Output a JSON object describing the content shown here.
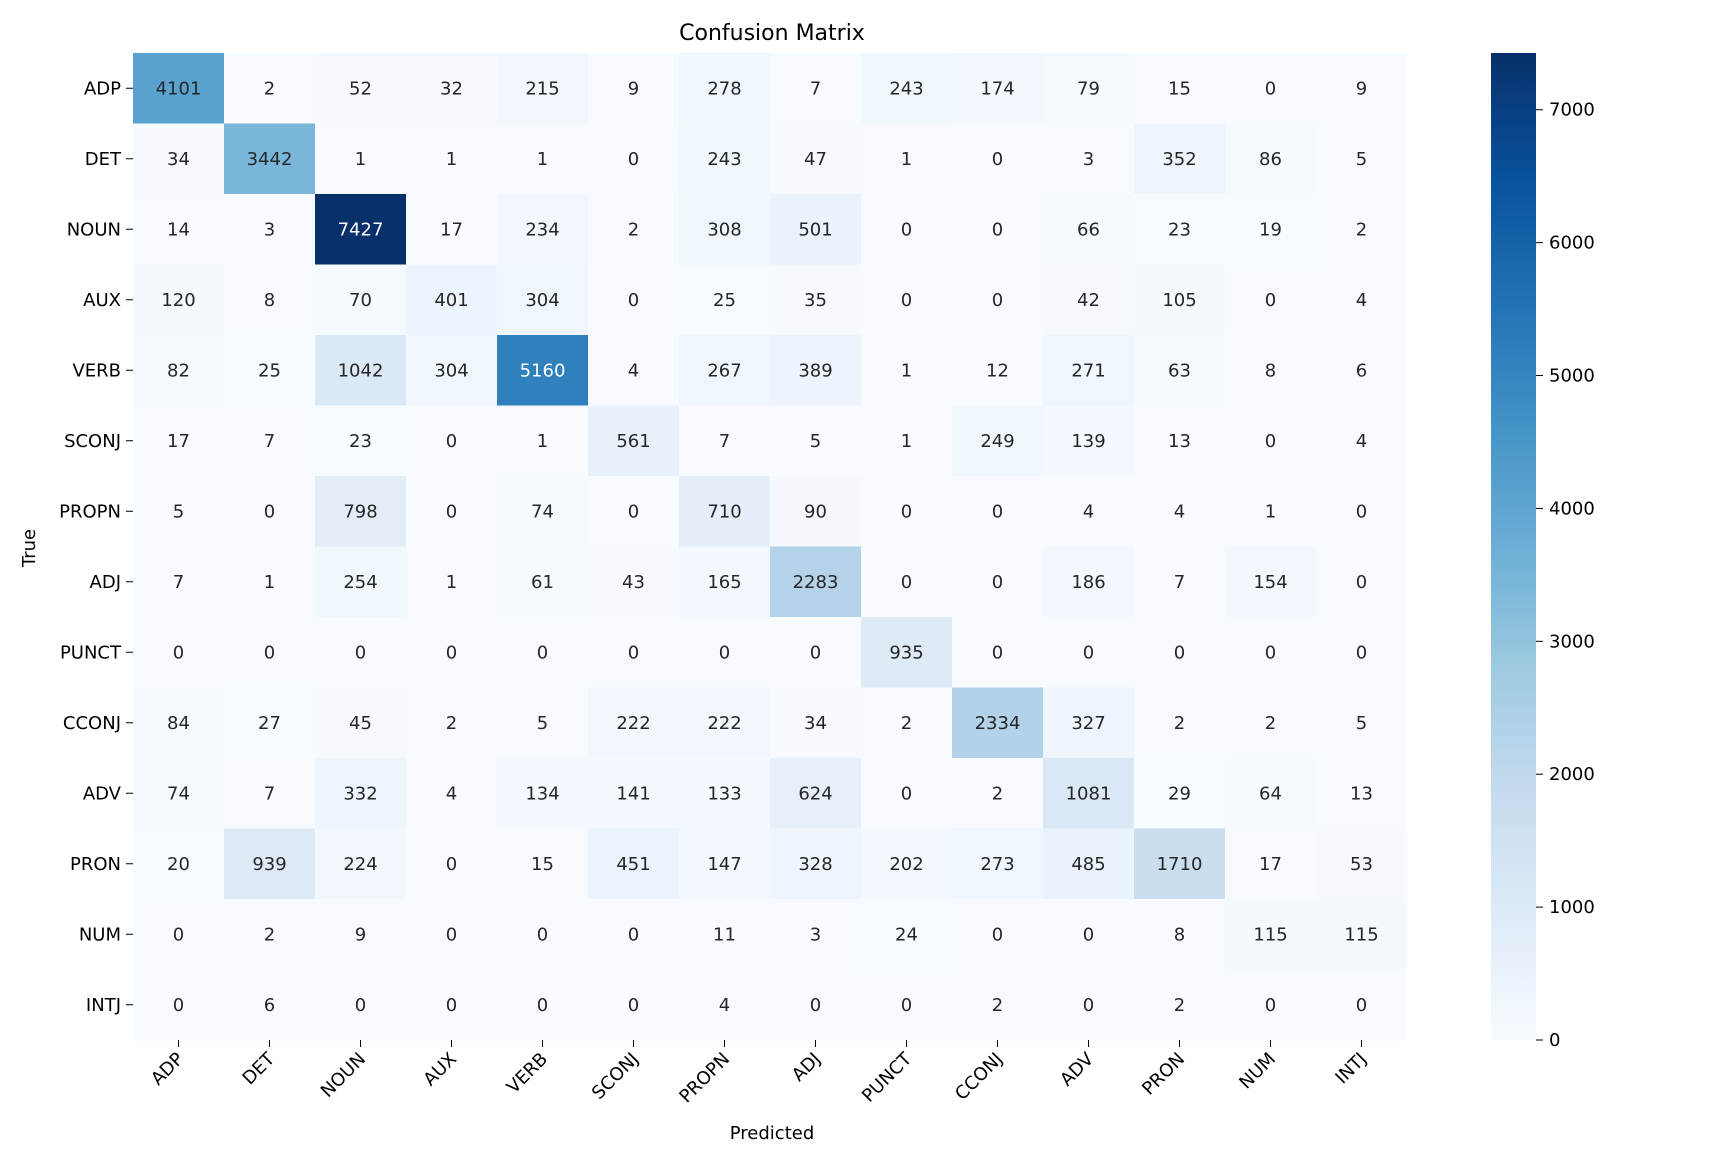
{
  "chart_data": {
    "type": "heatmap",
    "title": "Confusion Matrix",
    "xlabel": "Predicted",
    "ylabel": "True",
    "x_categories": [
      "ADP",
      "DET",
      "NOUN",
      "AUX",
      "VERB",
      "SCONJ",
      "PROPN",
      "ADJ",
      "PUNCT",
      "CCONJ",
      "ADV",
      "PRON",
      "NUM",
      "INTJ"
    ],
    "y_categories": [
      "ADP",
      "DET",
      "NOUN",
      "AUX",
      "VERB",
      "SCONJ",
      "PROPN",
      "ADJ",
      "PUNCT",
      "CCONJ",
      "ADV",
      "PRON",
      "NUM",
      "INTJ"
    ],
    "values": [
      [
        4101,
        2,
        52,
        32,
        215,
        9,
        278,
        7,
        243,
        174,
        79,
        15,
        0,
        9
      ],
      [
        34,
        3442,
        1,
        1,
        1,
        0,
        243,
        47,
        1,
        0,
        3,
        352,
        86,
        5
      ],
      [
        14,
        3,
        7427,
        17,
        234,
        2,
        308,
        501,
        0,
        0,
        66,
        23,
        19,
        2
      ],
      [
        120,
        8,
        70,
        401,
        304,
        0,
        25,
        35,
        0,
        0,
        42,
        105,
        0,
        4
      ],
      [
        82,
        25,
        1042,
        304,
        5160,
        4,
        267,
        389,
        1,
        12,
        271,
        63,
        8,
        6
      ],
      [
        17,
        7,
        23,
        0,
        1,
        561,
        7,
        5,
        1,
        249,
        139,
        13,
        0,
        4
      ],
      [
        5,
        0,
        798,
        0,
        74,
        0,
        710,
        90,
        0,
        0,
        4,
        4,
        1,
        0
      ],
      [
        7,
        1,
        254,
        1,
        61,
        43,
        165,
        2283,
        0,
        0,
        186,
        7,
        154,
        0
      ],
      [
        0,
        0,
        0,
        0,
        0,
        0,
        0,
        0,
        935,
        0,
        0,
        0,
        0,
        0
      ],
      [
        84,
        27,
        45,
        2,
        5,
        222,
        222,
        34,
        2,
        2334,
        327,
        2,
        2,
        5
      ],
      [
        74,
        7,
        332,
        4,
        134,
        141,
        133,
        624,
        0,
        2,
        1081,
        29,
        64,
        13
      ],
      [
        20,
        939,
        224,
        0,
        15,
        451,
        147,
        328,
        202,
        273,
        485,
        1710,
        17,
        53
      ],
      [
        0,
        2,
        9,
        0,
        0,
        0,
        11,
        3,
        24,
        0,
        0,
        8,
        115,
        115
      ],
      [
        0,
        6,
        0,
        0,
        0,
        0,
        4,
        0,
        0,
        2,
        0,
        2,
        0,
        0
      ]
    ],
    "colorbar": {
      "colormap": "Blues",
      "vmin": 0,
      "vmax": 7427,
      "ticks": [
        0,
        1000,
        2000,
        3000,
        4000,
        5000,
        6000,
        7000
      ]
    },
    "grid": false
  }
}
